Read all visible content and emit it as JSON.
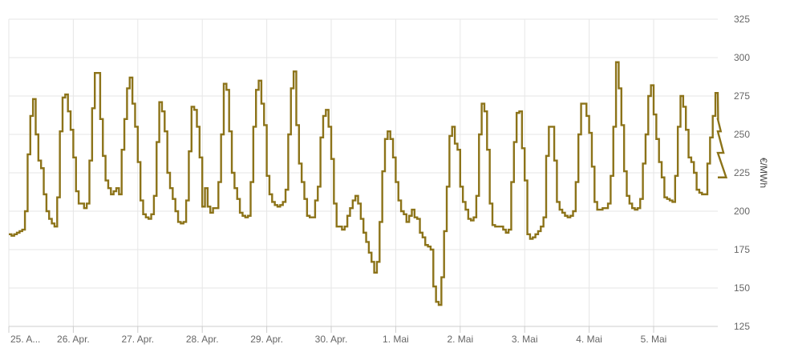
{
  "chart_data": {
    "type": "line",
    "title": "",
    "xlabel": "",
    "ylabel": "€/MWh",
    "ylim": [
      125,
      325
    ],
    "y_ticks": [
      125,
      150,
      175,
      200,
      225,
      250,
      275,
      300,
      325
    ],
    "x_ticks": [
      {
        "day": 0,
        "label": "25. A..."
      },
      {
        "day": 1,
        "label": "26. Apr."
      },
      {
        "day": 2,
        "label": "27. Apr."
      },
      {
        "day": 3,
        "label": "28. Apr."
      },
      {
        "day": 4,
        "label": "29. Apr."
      },
      {
        "day": 5,
        "label": "30. Apr."
      },
      {
        "day": 6,
        "label": "1. Mai"
      },
      {
        "day": 7,
        "label": "2. Mai"
      },
      {
        "day": 8,
        "label": "3. Mai"
      },
      {
        "day": 9,
        "label": "4. Mai"
      },
      {
        "day": 10,
        "label": "5. Mai"
      }
    ],
    "grid": true,
    "step": true,
    "series": [
      {
        "color": "#8c7319",
        "values": [
          185,
          184,
          185,
          186,
          187,
          188,
          200,
          237,
          262,
          273,
          250,
          233,
          228,
          211,
          200,
          195,
          192,
          190,
          209,
          252,
          274,
          276,
          265,
          253,
          235,
          213,
          205,
          205,
          202,
          205,
          233,
          267,
          290,
          290,
          260,
          236,
          220,
          215,
          211,
          213,
          215,
          211,
          240,
          260,
          280,
          287,
          270,
          255,
          232,
          207,
          198,
          196,
          195,
          198,
          210,
          245,
          271,
          265,
          252,
          225,
          215,
          208,
          200,
          193,
          192,
          193,
          207,
          239,
          268,
          266,
          255,
          235,
          203,
          215,
          203,
          199,
          202,
          202,
          219,
          250,
          283,
          279,
          252,
          225,
          215,
          208,
          199,
          197,
          196,
          197,
          219,
          255,
          279,
          285,
          270,
          256,
          223,
          211,
          206,
          204,
          203,
          204,
          206,
          214,
          250,
          280,
          291,
          256,
          231,
          219,
          208,
          197,
          196,
          196,
          207,
          216,
          248,
          262,
          266,
          255,
          234,
          205,
          190,
          190,
          188,
          190,
          197,
          202,
          207,
          210,
          205,
          195,
          186,
          180,
          173,
          167,
          160,
          167,
          193,
          226,
          247,
          252,
          247,
          235,
          219,
          207,
          200,
          198,
          193,
          197,
          201,
          196,
          195,
          186,
          183,
          178,
          177,
          175,
          151,
          141,
          139,
          157,
          187,
          216,
          249,
          255,
          244,
          240,
          216,
          206,
          201,
          195,
          194,
          196,
          210,
          250,
          270,
          265,
          240,
          205,
          191,
          190,
          190,
          190,
          188,
          186,
          188,
          219,
          245,
          264,
          265,
          241,
          220,
          185,
          182,
          183,
          185,
          187,
          190,
          196,
          236,
          255,
          255,
          233,
          206,
          201,
          199,
          197,
          196,
          197,
          200,
          219,
          250,
          270,
          270,
          262,
          251,
          229,
          206,
          201,
          201,
          202,
          202,
          205,
          223,
          255,
          297,
          280,
          256,
          226,
          210,
          205,
          202,
          201,
          202,
          208,
          231,
          250,
          275,
          282,
          263,
          247,
          232,
          222,
          209,
          208,
          207,
          206,
          223,
          255,
          275,
          268,
          253,
          235,
          232,
          225,
          214,
          212,
          211,
          211,
          231,
          248,
          262,
          277,
          260,
          252,
          238,
          222
        ]
      }
    ]
  }
}
